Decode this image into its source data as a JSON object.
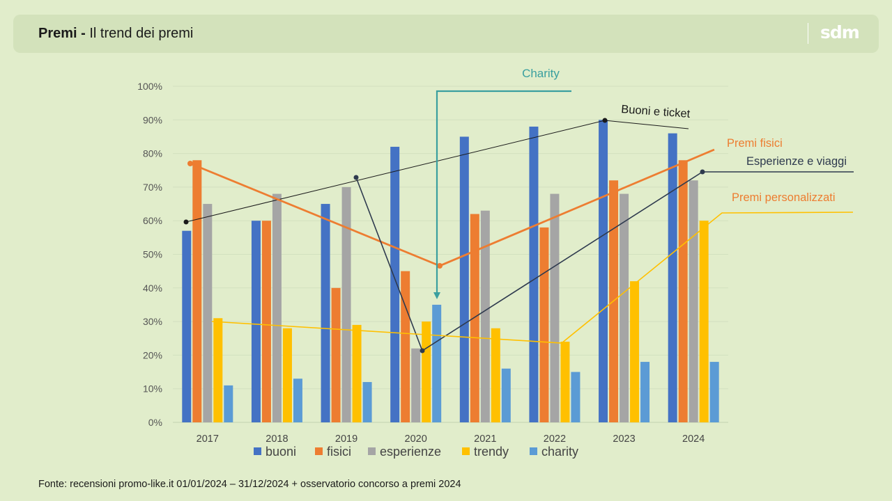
{
  "header": {
    "title_bold": "Premi -",
    "title_rest": " Il trend dei premi",
    "logo": "sdm"
  },
  "source": "Fonte: recensioni promo-like.it 01/01/2024 – 31/12/2024 + osservatorio concorso a premi 2024",
  "chart_data": {
    "type": "bar",
    "categories": [
      "2017",
      "2018",
      "2019",
      "2020",
      "2021",
      "2022",
      "2023",
      "2024"
    ],
    "series": [
      {
        "name": "buoni",
        "color": "#4472c4",
        "values": [
          57,
          60,
          65,
          82,
          85,
          88,
          90,
          86
        ]
      },
      {
        "name": "fisici",
        "color": "#ed7d31",
        "values": [
          78,
          60,
          40,
          45,
          62,
          58,
          72,
          78
        ]
      },
      {
        "name": "esperienze",
        "color": "#a5a5a5",
        "values": [
          65,
          68,
          70,
          22,
          63,
          68,
          68,
          72
        ]
      },
      {
        "name": "trendy",
        "color": "#ffc000",
        "values": [
          31,
          28,
          29,
          30,
          28,
          24,
          42,
          60
        ]
      },
      {
        "name": "charity",
        "color": "#5b9bd5",
        "values": [
          11,
          13,
          12,
          35,
          16,
          15,
          18,
          18
        ]
      }
    ],
    "y_ticks": [
      "0%",
      "10%",
      "20%",
      "30%",
      "40%",
      "50%",
      "60%",
      "70%",
      "80%",
      "90%",
      "100%"
    ],
    "ylim": [
      0,
      100
    ],
    "grid": true,
    "legend_position": "bottom",
    "annotations": [
      {
        "label": "Charity",
        "color": "#3a9f9f"
      },
      {
        "label": "Buoni e ticket",
        "color": "#1a1a1a"
      },
      {
        "label": "Premi fisici",
        "color": "#ed7d31"
      },
      {
        "label": "Esperienze e viaggi",
        "color": "#2e3a4e"
      },
      {
        "label": "Premi personalizzati",
        "color": "#ed7d31"
      }
    ]
  }
}
